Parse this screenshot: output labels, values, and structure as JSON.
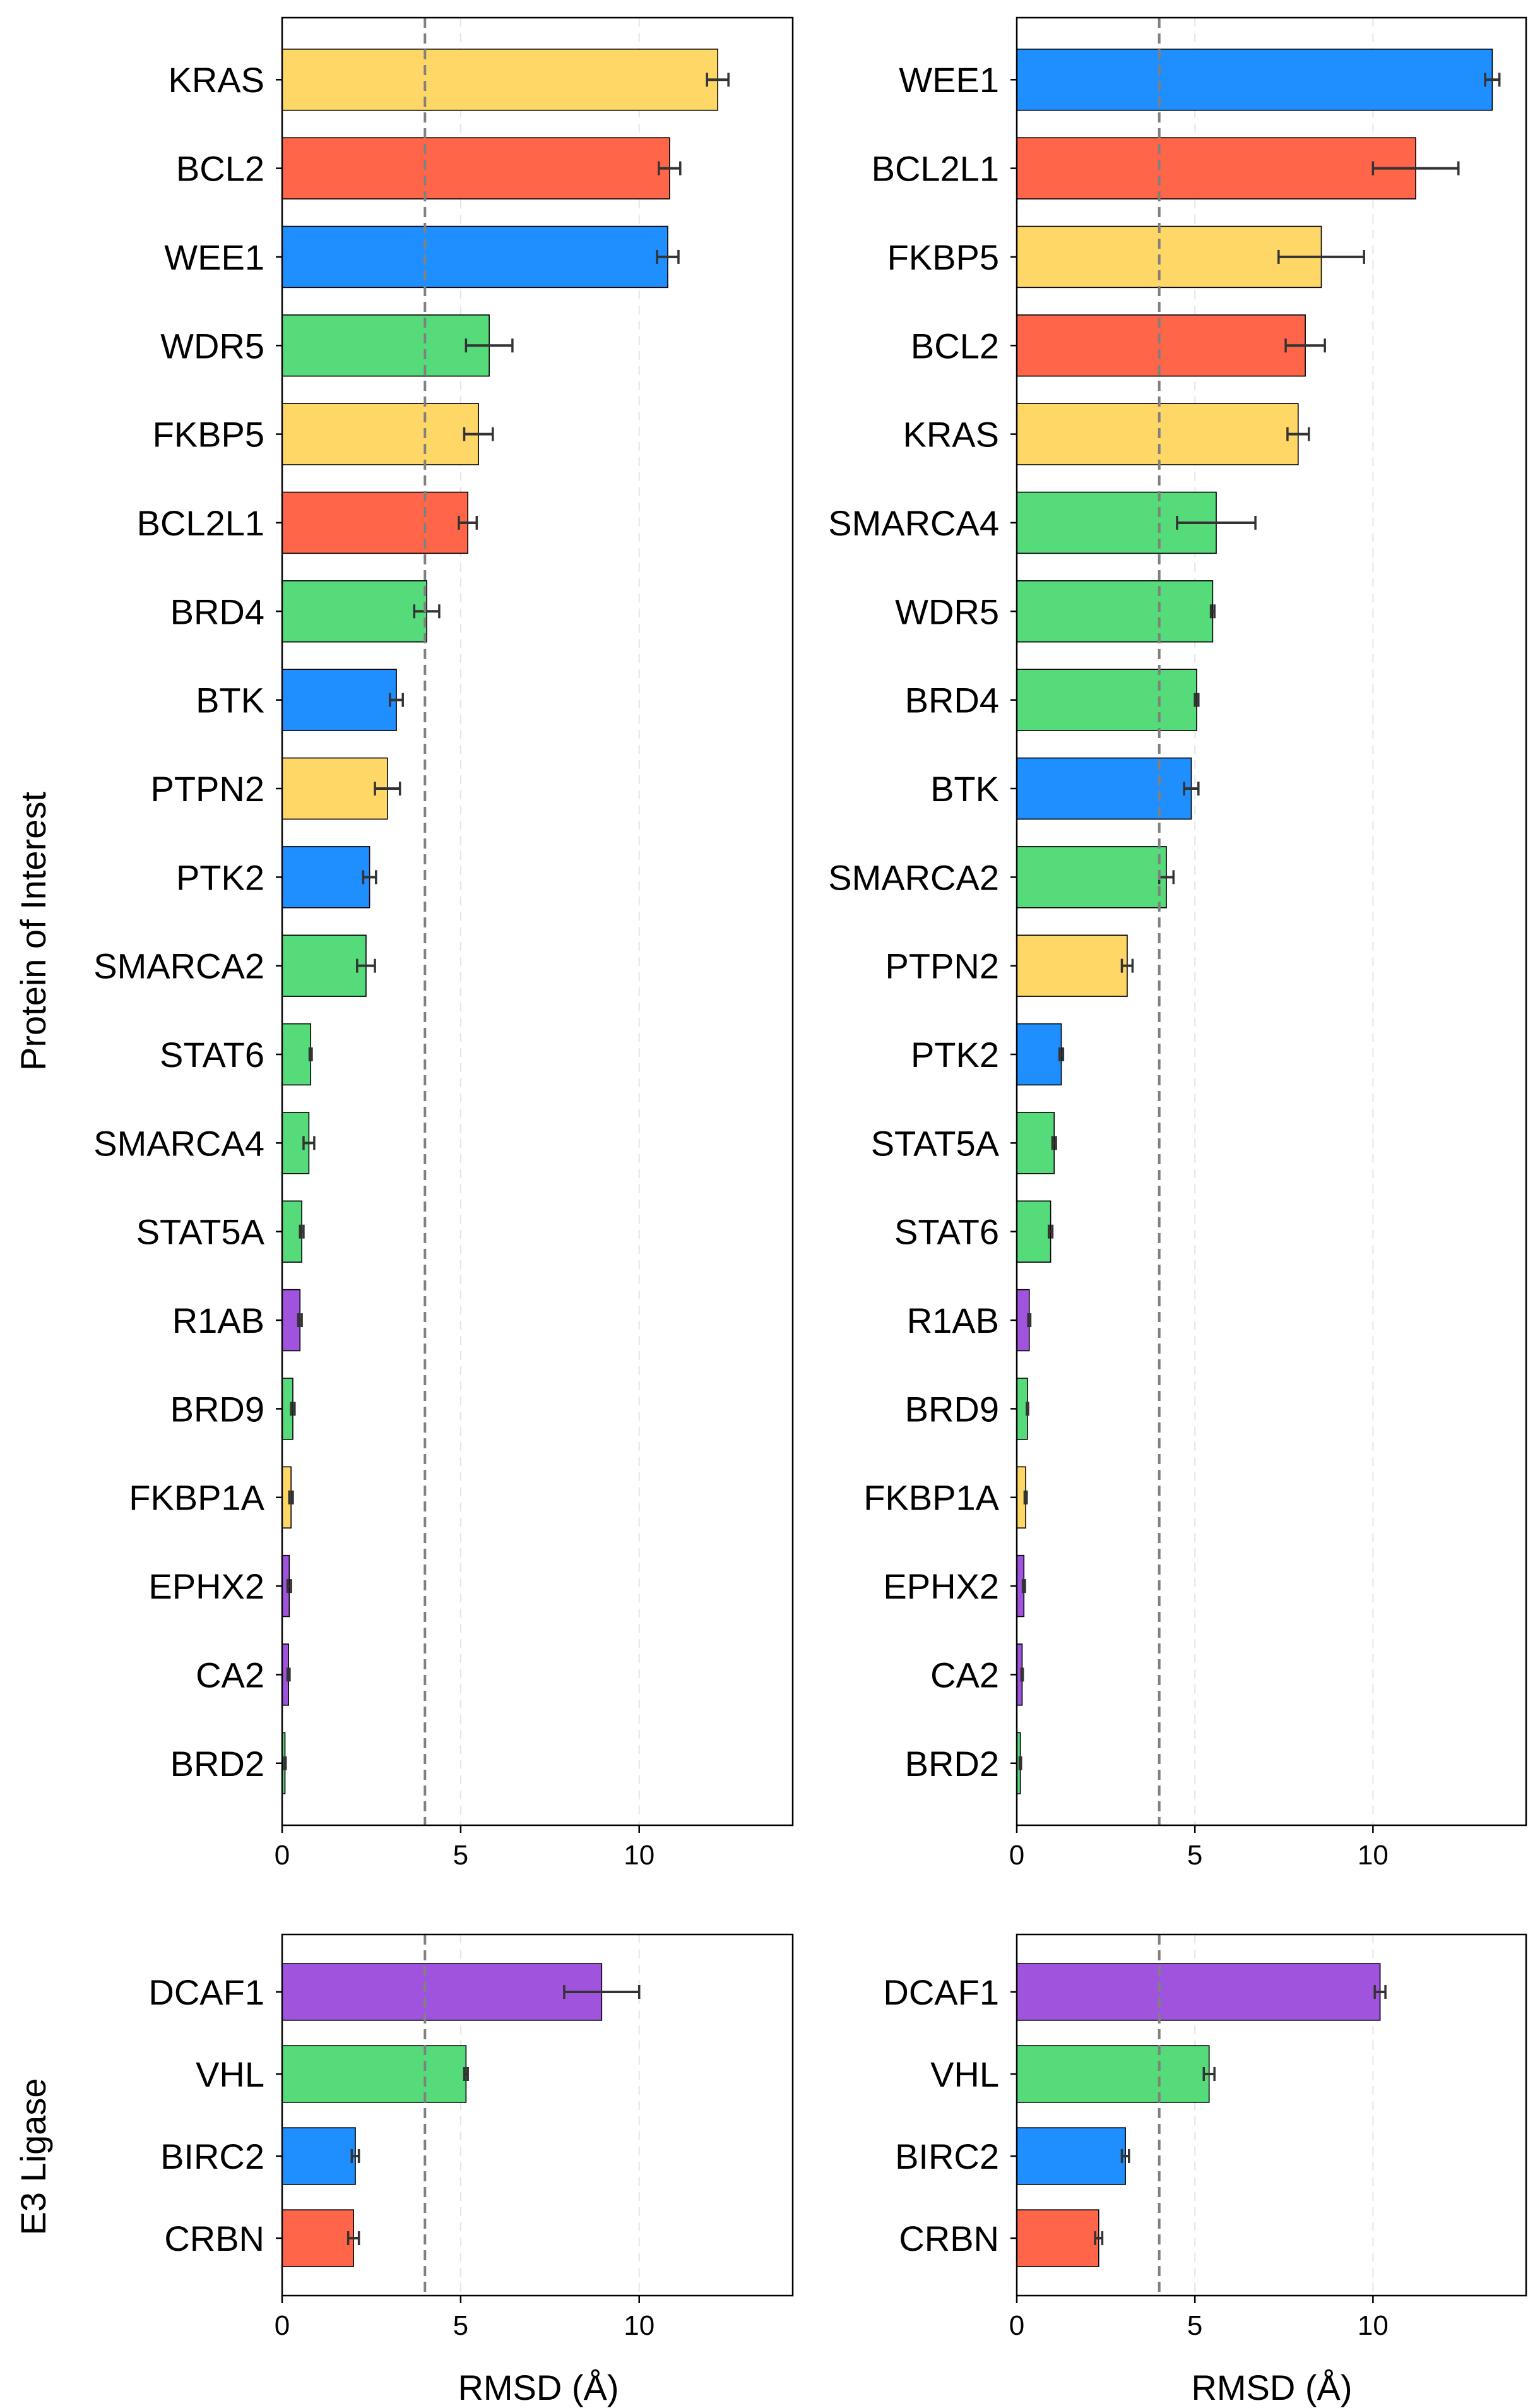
{
  "axes_units": "Å",
  "reference_line": 4,
  "xlim": [
    0,
    14.3
  ],
  "xticks": [
    0,
    5,
    10
  ],
  "colors": {
    "yellow": "#FFD766",
    "red": "#FF6549",
    "blue": "#1F8FFF",
    "green": "#56DB7B",
    "purple": "#A054DD",
    "refline": "#808080",
    "grid": "#E5E5E5",
    "errorbar": "#333333",
    "edge": "#000000"
  },
  "labels": {
    "poi_ylabel": "Protein of Interest",
    "e3_ylabel": "E3 Ligase",
    "xlabel": "RMSD (Å)"
  },
  "chart_data": [
    {
      "type": "bar",
      "orientation": "horizontal",
      "group": "Protein of Interest",
      "column": "left",
      "categories": [
        "KRAS",
        "BCL2",
        "WEE1",
        "WDR5",
        "FKBP5",
        "BCL2L1",
        "BRD4",
        "BTK",
        "PTPN2",
        "PTK2",
        "SMARCA2",
        "STAT6",
        "SMARCA4",
        "STAT5A",
        "R1AB",
        "BRD9",
        "FKBP1A",
        "EPHX2",
        "CA2",
        "BRD2"
      ],
      "values": [
        12.2,
        10.85,
        10.8,
        5.8,
        5.5,
        5.2,
        4.05,
        3.2,
        2.95,
        2.45,
        2.35,
        0.8,
        0.75,
        0.55,
        0.5,
        0.3,
        0.25,
        0.2,
        0.18,
        0.08
      ],
      "errors": [
        0.3,
        0.3,
        0.3,
        0.65,
        0.4,
        0.25,
        0.35,
        0.18,
        0.35,
        0.18,
        0.25,
        0.03,
        0.15,
        0.05,
        0.05,
        0.05,
        0.05,
        0.05,
        0.03,
        0.02
      ],
      "color_keys": [
        "yellow",
        "red",
        "blue",
        "green",
        "yellow",
        "red",
        "green",
        "blue",
        "yellow",
        "blue",
        "green",
        "green",
        "green",
        "green",
        "purple",
        "green",
        "yellow",
        "purple",
        "purple",
        "green"
      ],
      "xlim": [
        0,
        14.3
      ],
      "xticks": [
        0,
        5,
        10
      ],
      "reference_line": 4
    },
    {
      "type": "bar",
      "orientation": "horizontal",
      "group": "Protein of Interest",
      "column": "right",
      "categories": [
        "WEE1",
        "BCL2L1",
        "FKBP5",
        "BCL2",
        "KRAS",
        "SMARCA4",
        "WDR5",
        "BRD4",
        "BTK",
        "SMARCA2",
        "PTPN2",
        "PTK2",
        "STAT5A",
        "STAT6",
        "R1AB",
        "BRD9",
        "FKBP1A",
        "EPHX2",
        "CA2",
        "BRD2"
      ],
      "values": [
        13.35,
        11.2,
        8.55,
        8.1,
        7.9,
        5.6,
        5.5,
        5.05,
        4.9,
        4.2,
        3.1,
        1.25,
        1.05,
        0.95,
        0.35,
        0.3,
        0.25,
        0.2,
        0.15,
        0.1
      ],
      "errors": [
        0.2,
        1.2,
        1.2,
        0.55,
        0.3,
        1.1,
        0.05,
        0.05,
        0.2,
        0.2,
        0.15,
        0.05,
        0.05,
        0.05,
        0.03,
        0.02,
        0.03,
        0.03,
        0.02,
        0.02
      ],
      "color_keys": [
        "blue",
        "red",
        "yellow",
        "red",
        "yellow",
        "green",
        "green",
        "green",
        "blue",
        "green",
        "yellow",
        "blue",
        "green",
        "green",
        "purple",
        "green",
        "yellow",
        "purple",
        "purple",
        "green"
      ],
      "xlim": [
        0,
        14.3
      ],
      "xticks": [
        0,
        5,
        10
      ],
      "reference_line": 4
    },
    {
      "type": "bar",
      "orientation": "horizontal",
      "group": "E3 Ligase",
      "column": "left",
      "categories": [
        "DCAF1",
        "VHL",
        "BIRC2",
        "CRBN"
      ],
      "values": [
        8.95,
        5.15,
        2.05,
        2.0
      ],
      "errors": [
        1.05,
        0.05,
        0.1,
        0.15
      ],
      "color_keys": [
        "purple",
        "green",
        "blue",
        "red"
      ],
      "xlim": [
        0,
        14.3
      ],
      "xticks": [
        0,
        5,
        10
      ],
      "reference_line": 4,
      "xlabel": "RMSD (Å)"
    },
    {
      "type": "bar",
      "orientation": "horizontal",
      "group": "E3 Ligase",
      "column": "right",
      "categories": [
        "DCAF1",
        "VHL",
        "BIRC2",
        "CRBN"
      ],
      "values": [
        10.2,
        5.4,
        3.05,
        2.3
      ],
      "errors": [
        0.15,
        0.15,
        0.1,
        0.1
      ],
      "color_keys": [
        "purple",
        "green",
        "blue",
        "red"
      ],
      "xlim": [
        0,
        14.3
      ],
      "xticks": [
        0,
        5,
        10
      ],
      "reference_line": 4,
      "xlabel": "RMSD (Å)"
    }
  ]
}
